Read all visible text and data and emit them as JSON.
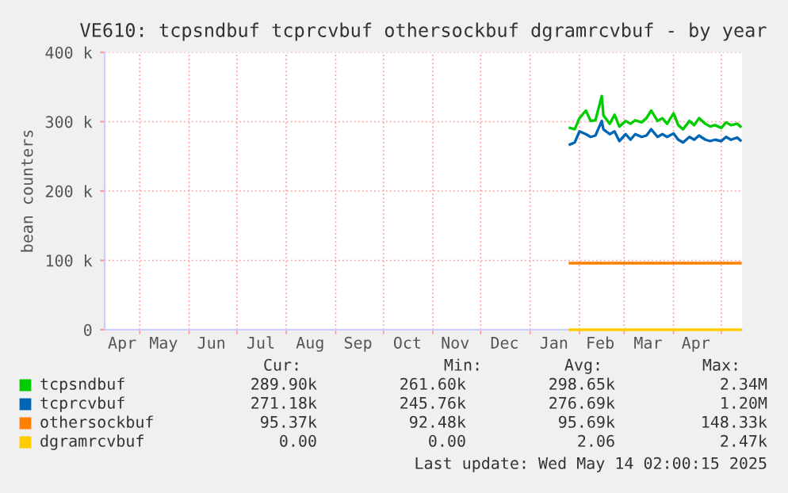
{
  "chart_data": {
    "type": "line",
    "title": "VE610: tcpsndbuf tcprcvbuf othersockbuf dgramrcvbuf - by year",
    "ylabel": "bean counters",
    "xlim": [
      "2024-04-09",
      "2025-05-14"
    ],
    "xticks": [
      {
        "value": "2024-04-20",
        "label": "Apr"
      },
      {
        "value": "2024-05-16",
        "label": "May"
      },
      {
        "value": "2024-06-15",
        "label": "Jun"
      },
      {
        "value": "2024-07-16",
        "label": "Jul"
      },
      {
        "value": "2024-08-16",
        "label": "Aug"
      },
      {
        "value": "2024-09-15",
        "label": "Sep"
      },
      {
        "value": "2024-10-16",
        "label": "Oct"
      },
      {
        "value": "2024-11-15",
        "label": "Nov"
      },
      {
        "value": "2024-12-16",
        "label": "Dec"
      },
      {
        "value": "2025-01-16",
        "label": "Jan"
      },
      {
        "value": "2025-02-14",
        "label": "Feb"
      },
      {
        "value": "2025-03-16",
        "label": "Mar"
      },
      {
        "value": "2025-04-15",
        "label": "Apr"
      },
      {
        "value": "2024-05-01",
        "label": null
      },
      {
        "value": "2024-06-01",
        "label": null
      },
      {
        "value": "2024-07-01",
        "label": null
      },
      {
        "value": "2024-08-01",
        "label": null
      },
      {
        "value": "2024-09-01",
        "label": null
      },
      {
        "value": "2024-10-01",
        "label": null
      },
      {
        "value": "2024-11-01",
        "label": null
      },
      {
        "value": "2024-12-01",
        "label": null
      },
      {
        "value": "2025-01-01",
        "label": null
      },
      {
        "value": "2025-02-01",
        "label": null
      },
      {
        "value": "2025-03-01",
        "label": null
      },
      {
        "value": "2025-04-01",
        "label": null
      },
      {
        "value": "2025-05-01",
        "label": null
      }
    ],
    "ylim": [
      0,
      400
    ],
    "yticks": [
      0,
      {
        "value": 100,
        "label": "100 k"
      },
      {
        "value": 200,
        "label": "200 k"
      },
      {
        "value": 300,
        "label": "300 k"
      },
      {
        "value": 400,
        "label": "400 k"
      }
    ],
    "grid": true,
    "legend": "bottom",
    "x": [
      "2025-01-26",
      "2025-01-29",
      "2025-02-01",
      "2025-02-05",
      "2025-02-08",
      "2025-02-11",
      "2025-02-15",
      "2025-02-16",
      "2025-02-20",
      "2025-02-23",
      "2025-02-26",
      "2025-03-02",
      "2025-03-05",
      "2025-03-08",
      "2025-03-12",
      "2025-03-15",
      "2025-03-18",
      "2025-03-22",
      "2025-03-25",
      "2025-03-28",
      "2025-04-01",
      "2025-04-04",
      "2025-04-07",
      "2025-04-11",
      "2025-04-14",
      "2025-04-17",
      "2025-04-21",
      "2025-04-24",
      "2025-04-27",
      "2025-05-01",
      "2025-05-04",
      "2025-05-07",
      "2025-05-11",
      "2025-05-13"
    ],
    "series": [
      {
        "name": "tcpsndbuf",
        "color": "#00cc00",
        "values": [
          291,
          289,
          305,
          316,
          301,
          302,
          337,
          309,
          297,
          310,
          293,
          301,
          297,
          302,
          299,
          305,
          316,
          301,
          305,
          297,
          312,
          295,
          289,
          301,
          295,
          305,
          297,
          293,
          295,
          291,
          299,
          295,
          297,
          293
        ]
      },
      {
        "name": "tcprcvbuf",
        "color": "#0066b3",
        "values": [
          267,
          270,
          286,
          282,
          278,
          280,
          301,
          289,
          282,
          286,
          272,
          282,
          274,
          282,
          278,
          280,
          289,
          278,
          282,
          278,
          283,
          274,
          270,
          278,
          274,
          280,
          274,
          272,
          274,
          272,
          278,
          274,
          277,
          273
        ]
      },
      {
        "name": "othersockbuf",
        "color": "#ff8000",
        "x": [
          "2025-01-26",
          "2025-05-13"
        ],
        "values": [
          96,
          96
        ]
      },
      {
        "name": "dgramrcvbuf",
        "color": "#ffcc00",
        "x": [
          "2025-01-26",
          "2025-05-13"
        ],
        "values": [
          0,
          0
        ]
      }
    ],
    "annotations": [
      "Cur:",
      "Min:",
      "Avg:",
      "Max:",
      "289.90k",
      "261.60k",
      "298.65k",
      "2.34M",
      "271.18k",
      "245.76k",
      "276.69k",
      "1.20M",
      "95.37k",
      "92.48k",
      "95.69k",
      "148.33k",
      "0.00",
      "0.00",
      "2.06",
      "2.47k",
      "Last update: Wed May 14 02:00:15 2025"
    ]
  }
}
